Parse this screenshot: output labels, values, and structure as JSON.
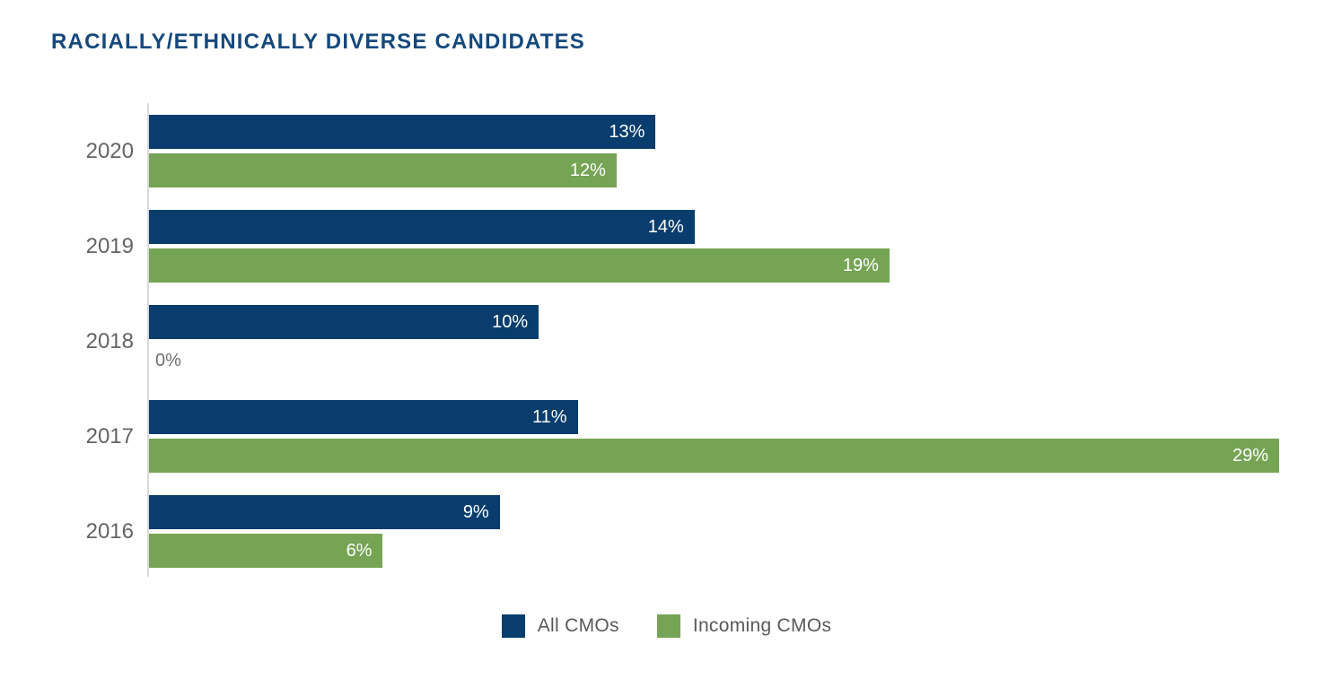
{
  "title": "RACIALLY/ETHNICALLY DIVERSE CANDIDATES",
  "colors": {
    "series": [
      "#083D6D",
      "#75A455"
    ],
    "title": "#15497C",
    "category_label": "#636466",
    "zero_label": "#6D6E71",
    "legend_text": "#58595B",
    "axis_line": "#D9D9D9",
    "value_label": "#FFFFFF",
    "background": "#FFFFFF"
  },
  "legend": [
    {
      "label": "All CMOs"
    },
    {
      "label": "Incoming CMOs"
    }
  ],
  "chart_data": {
    "type": "bar",
    "orientation": "horizontal",
    "title": "RACIALLY/ETHNICALLY DIVERSE CANDIDATES",
    "categories": [
      "2020",
      "2019",
      "2018",
      "2017",
      "2016"
    ],
    "series": [
      {
        "name": "All CMOs",
        "values": [
          13,
          14,
          10,
          11,
          9
        ]
      },
      {
        "name": "Incoming CMOs",
        "values": [
          12,
          19,
          0,
          29,
          6
        ]
      }
    ],
    "value_suffix": "%",
    "xlabel": "",
    "ylabel": "",
    "xlim": [
      0,
      29
    ],
    "grid": false,
    "legend_position": "bottom",
    "value_labels": "inside-end",
    "zero_value_label_style": "gray-outside"
  }
}
